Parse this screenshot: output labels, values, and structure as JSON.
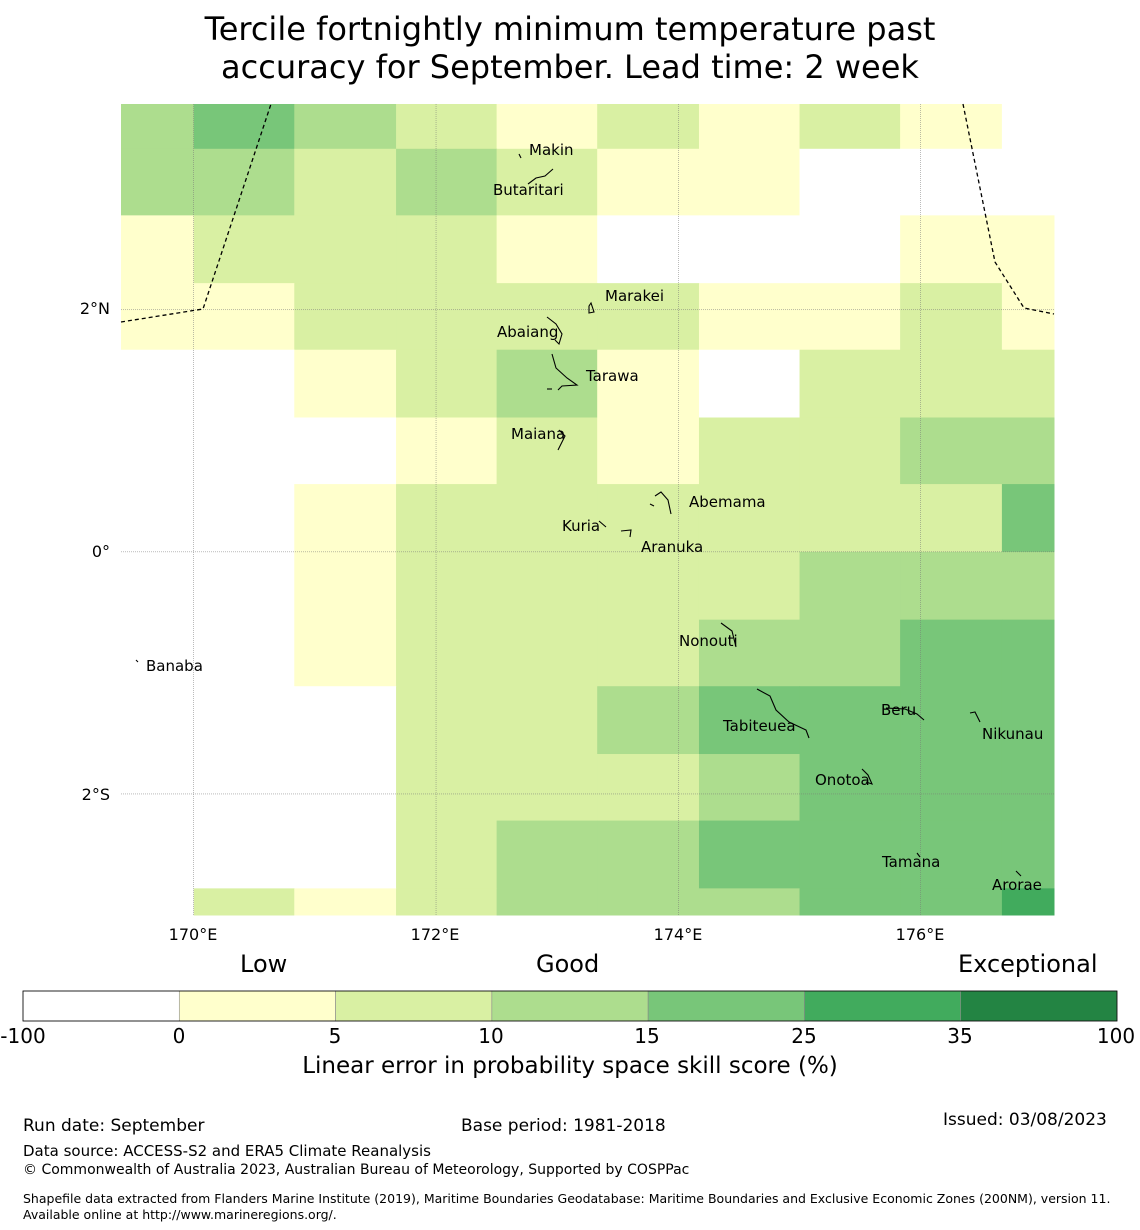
{
  "title": {
    "line1": "Tercile fortnightly minimum temperature past",
    "line2": "accuracy for September. Lead time: 2 week"
  },
  "axes": {
    "lat_labels": [
      "2°N",
      "0°",
      "2°S"
    ],
    "lon_labels": [
      "170°E",
      "172°E",
      "174°E",
      "176°E"
    ],
    "lon_range": [
      169.4,
      177.1
    ],
    "lat_range": [
      -3.0,
      3.7
    ]
  },
  "islands": [
    "Makin",
    "Butaritari",
    "Marakei",
    "Abaiang",
    "Tarawa",
    "Maiana",
    "Abemama",
    "Kuria",
    "Aranuka",
    "Nonouti",
    "Banaba",
    "Tabiteuea",
    "Beru",
    "Nikunau",
    "Onotoa",
    "Tamana",
    "Arorae"
  ],
  "colorbar": {
    "categories": [
      "Low",
      "Good",
      "Exceptional"
    ],
    "ticks": [
      "-100",
      "0",
      "5",
      "10",
      "15",
      "25",
      "35",
      "100"
    ],
    "colors": [
      "#ffffff",
      "#ffffcc",
      "#d9f0a3",
      "#addd8e",
      "#78c679",
      "#41ab5d",
      "#238443"
    ],
    "label": "Linear error in probability space skill score (%)"
  },
  "grid_data": {
    "lon_edges": [
      169.4,
      170.0,
      170.83,
      171.67,
      172.5,
      173.33,
      174.17,
      175.0,
      175.83,
      176.67,
      177.1
    ],
    "lat_edges": [
      3.7,
      3.33,
      2.78,
      2.22,
      1.67,
      1.11,
      0.56,
      0.0,
      -0.56,
      -1.11,
      -1.67,
      -2.22,
      -2.78,
      -3.0
    ],
    "values": [
      [
        3,
        4,
        3,
        2,
        1,
        2,
        1,
        2,
        1,
        0
      ],
      [
        3,
        3,
        2,
        3,
        2,
        1,
        1,
        0,
        0,
        0
      ],
      [
        1,
        2,
        2,
        2,
        1,
        0,
        0,
        0,
        1,
        1
      ],
      [
        1,
        1,
        2,
        2,
        2,
        2,
        1,
        1,
        2,
        1
      ],
      [
        0,
        0,
        1,
        2,
        3,
        1,
        0,
        2,
        2,
        2
      ],
      [
        0,
        0,
        0,
        1,
        2,
        1,
        2,
        2,
        3,
        3
      ],
      [
        0,
        0,
        1,
        2,
        2,
        2,
        2,
        2,
        2,
        4
      ],
      [
        0,
        0,
        1,
        2,
        2,
        2,
        2,
        3,
        3,
        3
      ],
      [
        0,
        0,
        1,
        2,
        2,
        2,
        3,
        3,
        4,
        4
      ],
      [
        0,
        0,
        0,
        2,
        2,
        3,
        4,
        4,
        4,
        4
      ],
      [
        0,
        0,
        0,
        2,
        2,
        2,
        3,
        4,
        4,
        4
      ],
      [
        0,
        0,
        0,
        2,
        3,
        3,
        4,
        4,
        4,
        4
      ],
      [
        0,
        2,
        1,
        2,
        3,
        3,
        3,
        4,
        4,
        5
      ]
    ]
  },
  "footer": {
    "run_date": "Run date: September",
    "base_period": "Base period: 1981-2018",
    "issued": "Issued: 03/08/2023",
    "data_source": "Data source: ACCESS-S2 and ERA5 Climate Reanalysis",
    "copyright": "© Commonwealth of Australia 2023, Australian Bureau of Meteorology, Supported by COSPPac",
    "shapefile": "Shapefile data extracted from Flanders Marine Institute (2019), Maritime Boundaries Geodatabase: Maritime Boundaries and Exclusive Economic Zones (200NM), version 11. Available online at http://www.marineregions.org/."
  }
}
